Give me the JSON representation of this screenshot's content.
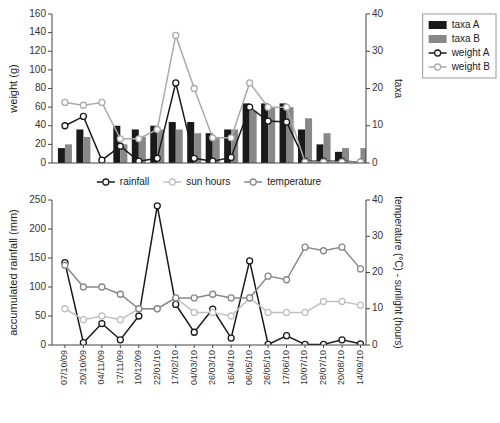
{
  "chart_data": [
    {
      "type": "bar",
      "categories": [
        null,
        null,
        null,
        null,
        null,
        null,
        null,
        null,
        null,
        null,
        null,
        null,
        null,
        null,
        null,
        null,
        null
      ],
      "series": [
        {
          "name": "taxa A",
          "type": "bar",
          "axis": "y2",
          "color": "#1a1a1a",
          "values": [
            4,
            9,
            0,
            10,
            9,
            10,
            11,
            11,
            8,
            9,
            16,
            16,
            16,
            9,
            5,
            3,
            0
          ]
        },
        {
          "name": "taxa B",
          "type": "bar",
          "axis": "y2",
          "color": "#888888",
          "values": [
            5,
            7,
            0,
            5,
            7,
            9,
            9,
            8,
            7,
            9,
            14,
            15,
            15,
            12,
            8,
            4,
            4
          ]
        },
        {
          "name": "weight A",
          "type": "line",
          "marker": "circle",
          "color": "#1a1a1a",
          "values": [
            40,
            50,
            3,
            18,
            2,
            5,
            86,
            5,
            2,
            6,
            60,
            45,
            44,
            2,
            2,
            2,
            1
          ]
        },
        {
          "name": "weight B",
          "type": "line",
          "marker": "circle",
          "color": "#aaaaaa",
          "values": [
            65,
            62,
            65,
            26,
            26,
            36,
            137,
            80,
            27,
            27,
            86,
            60,
            60,
            1,
            1,
            1,
            1
          ]
        }
      ],
      "ylabel": "weight (g)",
      "y2label": "taxa",
      "ylim": [
        0,
        160
      ],
      "yticks": [
        0,
        20,
        40,
        60,
        80,
        100,
        120,
        140,
        160
      ],
      "y2lim": [
        0,
        40
      ],
      "y2ticks": [
        0,
        10,
        20,
        30,
        40
      ],
      "tick_labels": "y",
      "grid": false,
      "legend": "upper right"
    },
    {
      "type": "line",
      "categories": [
        "07/10/09",
        "20/10/09",
        "04/11/09",
        "17/11/09",
        "10/12/09",
        "22/01/10",
        "17/02/10",
        "04/03/10",
        "26/03/10",
        "16/04/10",
        "06/05/10",
        "26/05/10",
        "17/06/10",
        "10/07/10",
        "28/07/10",
        "20/08/10",
        "14/09/10"
      ],
      "series": [
        {
          "name": "rainfall",
          "marker": "circle",
          "color": "#1a1a1a",
          "values": [
            142,
            4,
            37,
            9,
            50,
            240,
            70,
            22,
            62,
            12,
            145,
            1,
            16,
            1,
            1,
            9,
            2
          ]
        },
        {
          "name": "sun hours",
          "axis": "y2",
          "marker": "circle",
          "color": "#c0c0c0",
          "values": [
            10,
            7,
            8,
            7,
            10,
            10,
            13,
            9,
            9,
            8,
            13,
            9,
            9,
            9,
            12,
            12,
            11
          ]
        },
        {
          "name": "temperature",
          "axis": "y2",
          "marker": "circle",
          "color": "#888888",
          "values": [
            22,
            16,
            16,
            14,
            10,
            10,
            13,
            13,
            14,
            13,
            13,
            19,
            18,
            27,
            26,
            27,
            21
          ]
        }
      ],
      "ylabel": "accumulated rainfall (mm)",
      "y2label": "temperature (°C) - sunlight (hours)",
      "ylim": [
        0,
        250
      ],
      "yticks": [
        0,
        50,
        100,
        150,
        200,
        250
      ],
      "y2lim": [
        0,
        40
      ],
      "y2ticks": [
        0,
        10,
        20,
        30,
        40
      ],
      "grid": false,
      "legend": "upper center"
    }
  ]
}
